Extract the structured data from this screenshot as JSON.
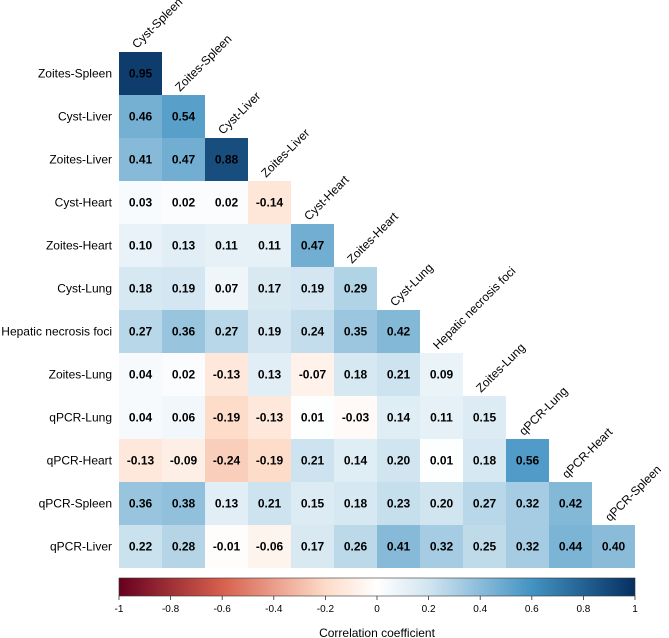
{
  "chart_data": {
    "type": "heatmap",
    "subtype": "lower-triangular correlation matrix",
    "row_labels": [
      "Zoites-Spleen",
      "Cyst-Liver",
      "Zoites-Liver",
      "Cyst-Heart",
      "Zoites-Heart",
      "Cyst-Lung",
      "Hepatic necrosis foci",
      "Zoites-Lung",
      "qPCR-Lung",
      "qPCR-Heart",
      "qPCR-Spleen",
      "qPCR-Liver"
    ],
    "column_labels": [
      "Cyst-Spleen",
      "Zoites-Spleen",
      "Cyst-Liver",
      "Zoites-Liver",
      "Cyst-Heart",
      "Zoites-Heart",
      "Cyst-Lung",
      "Hepatic necrosis foci",
      "Zoites-Lung",
      "qPCR-Lung",
      "qPCR-Heart",
      "qPCR-Spleen"
    ],
    "values": [
      [
        0.95
      ],
      [
        0.46,
        0.54
      ],
      [
        0.41,
        0.47,
        0.88
      ],
      [
        0.03,
        0.02,
        0.02,
        -0.14
      ],
      [
        0.1,
        0.13,
        0.11,
        0.11,
        0.47
      ],
      [
        0.18,
        0.19,
        0.07,
        0.17,
        0.19,
        0.29
      ],
      [
        0.27,
        0.36,
        0.27,
        0.19,
        0.24,
        0.35,
        0.42
      ],
      [
        0.04,
        0.02,
        -0.13,
        0.13,
        -0.07,
        0.18,
        0.21,
        0.09
      ],
      [
        0.04,
        0.06,
        -0.19,
        -0.13,
        0.01,
        -0.03,
        0.14,
        0.11,
        0.15
      ],
      [
        -0.13,
        -0.09,
        -0.24,
        -0.19,
        0.21,
        0.14,
        0.2,
        0.01,
        0.18,
        0.56
      ],
      [
        0.36,
        0.38,
        0.13,
        0.21,
        0.15,
        0.18,
        0.23,
        0.2,
        0.27,
        0.32,
        0.42
      ],
      [
        0.22,
        0.28,
        -0.01,
        -0.06,
        0.17,
        0.26,
        0.41,
        0.32,
        0.25,
        0.32,
        0.44,
        0.4
      ]
    ],
    "value_labels": [
      [
        "0.95"
      ],
      [
        "0.46",
        "0.54"
      ],
      [
        "0.41",
        "0.47",
        "0.88"
      ],
      [
        "0.03",
        "0.02",
        "0.02",
        "-0.14"
      ],
      [
        "0.10",
        "0.13",
        "0.11",
        "0.11",
        "0.47"
      ],
      [
        "0.18",
        "0.19",
        "0.07",
        "0.17",
        "0.19",
        "0.29"
      ],
      [
        "0.27",
        "0.36",
        "0.27",
        "0.19",
        "0.24",
        "0.35",
        "0.42"
      ],
      [
        "0.04",
        "0.02",
        "-0.13",
        "0.13",
        "-0.07",
        "0.18",
        "0.21",
        "0.09"
      ],
      [
        "0.04",
        "0.06",
        "-0.19",
        "-0.13",
        "0.01",
        "-0.03",
        "0.14",
        "0.11",
        "0.15"
      ],
      [
        "-0.13",
        "-0.09",
        "-0.24",
        "-0.19",
        "0.21",
        "0.14",
        "0.20",
        "0.01",
        "0.18",
        "0.56"
      ],
      [
        "0.36",
        "0.38",
        "0.13",
        "0.21",
        "0.15",
        "0.18",
        "0.23",
        "0.20",
        "0.27",
        "0.32",
        "0.42"
      ],
      [
        "0.22",
        "0.28",
        "-0.01",
        "-0.06",
        "0.17",
        "0.26",
        "0.41",
        "0.32",
        "0.25",
        "0.32",
        "0.44",
        "0.40"
      ]
    ],
    "color_scale": {
      "range": [
        -1,
        1
      ],
      "stops": [
        {
          "value": -1,
          "color": "#67001f"
        },
        {
          "value": -0.6,
          "color": "#d6604d"
        },
        {
          "value": -0.2,
          "color": "#fddbc7"
        },
        {
          "value": 0,
          "color": "#ffffff"
        },
        {
          "value": 0.2,
          "color": "#d1e5f0"
        },
        {
          "value": 0.6,
          "color": "#4393c3"
        },
        {
          "value": 1,
          "color": "#053061"
        }
      ]
    },
    "colorbar": {
      "ticks": [
        -1,
        -0.8,
        -0.6,
        -0.4,
        -0.2,
        0,
        0.2,
        0.4,
        0.6,
        0.8,
        1
      ],
      "tick_labels": [
        "-1",
        "-0.8",
        "-0.6",
        "-0.4",
        "-0.2",
        "0",
        "0.2",
        "0.4",
        "0.6",
        "0.8",
        "1"
      ],
      "title": "Correlation coefficient"
    }
  }
}
